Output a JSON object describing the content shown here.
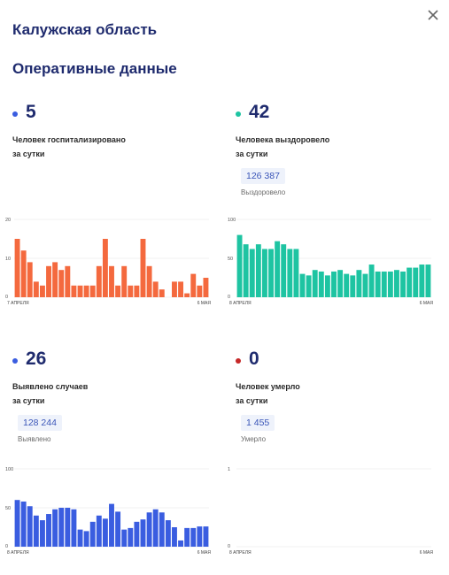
{
  "header": {
    "region": "Калужская область",
    "section": "Оперативные данные",
    "close_icon": "close-icon"
  },
  "stats": [
    {
      "value": "5",
      "dot_color": "#3a5de0",
      "desc_line1": "Человек госпитализировано",
      "desc_line2": "за сутки"
    },
    {
      "value": "42",
      "dot_color": "#1ec4a2",
      "desc_line1": "Человека выздоровело",
      "desc_line2": "за сутки",
      "cumulative": "126 387",
      "cumulative_label": "Выздоровело"
    },
    {
      "value": "26",
      "dot_color": "#3a5de0",
      "desc_line1": "Выявлено случаев",
      "desc_line2": "за сутки",
      "cumulative": "128 244",
      "cumulative_label": "Выявлено"
    },
    {
      "value": "0",
      "dot_color": "#c62828",
      "desc_line1": "Человек умерло",
      "desc_line2": "за сутки",
      "cumulative": "1 455",
      "cumulative_label": "Умерло"
    }
  ],
  "chart_data": [
    {
      "type": "bar",
      "color": "#f4693e",
      "yticks": [
        "0",
        "10",
        "20"
      ],
      "ylim": [
        0,
        20
      ],
      "x_start": "7 АПРЕЛЯ",
      "x_end": "6 МАЯ",
      "values": [
        15,
        12,
        9,
        4,
        3,
        8,
        9,
        7,
        8,
        3,
        3,
        3,
        3,
        8,
        15,
        8,
        3,
        8,
        3,
        3,
        15,
        8,
        4,
        2,
        0,
        4,
        4,
        1,
        6,
        3,
        5
      ]
    },
    {
      "type": "bar",
      "color": "#1ec4a2",
      "yticks": [
        "0",
        "50",
        "100"
      ],
      "ylim": [
        0,
        100
      ],
      "x_start": "8 АПРЕЛЯ",
      "x_end": "6 МАЯ",
      "values": [
        80,
        68,
        62,
        68,
        62,
        62,
        72,
        68,
        62,
        62,
        30,
        28,
        35,
        33,
        28,
        33,
        35,
        30,
        28,
        35,
        30,
        42,
        33,
        33,
        33,
        35,
        33,
        38,
        38,
        42,
        42
      ]
    },
    {
      "type": "bar",
      "color": "#3a5de0",
      "yticks": [
        "0",
        "50",
        "100"
      ],
      "ylim": [
        0,
        100
      ],
      "x_start": "8 АПРЕЛЯ",
      "x_end": "6 МАЯ",
      "values": [
        60,
        58,
        52,
        40,
        34,
        42,
        48,
        50,
        50,
        48,
        22,
        20,
        32,
        40,
        36,
        55,
        45,
        22,
        24,
        32,
        35,
        44,
        48,
        44,
        34,
        25,
        8,
        24,
        24,
        26,
        26
      ]
    },
    {
      "type": "bar",
      "color": "#c62828",
      "yticks": [
        "0",
        "1"
      ],
      "ylim": [
        0,
        1
      ],
      "x_start": "8 АПРЕЛЯ",
      "x_end": "6 МАЯ",
      "values": [
        0,
        0,
        0,
        0,
        0,
        0,
        0,
        0,
        0,
        0,
        0,
        0,
        0,
        0,
        0,
        0,
        0,
        0,
        0,
        0,
        0,
        0,
        0,
        0,
        0,
        0,
        0,
        0,
        0,
        0,
        0
      ]
    }
  ]
}
